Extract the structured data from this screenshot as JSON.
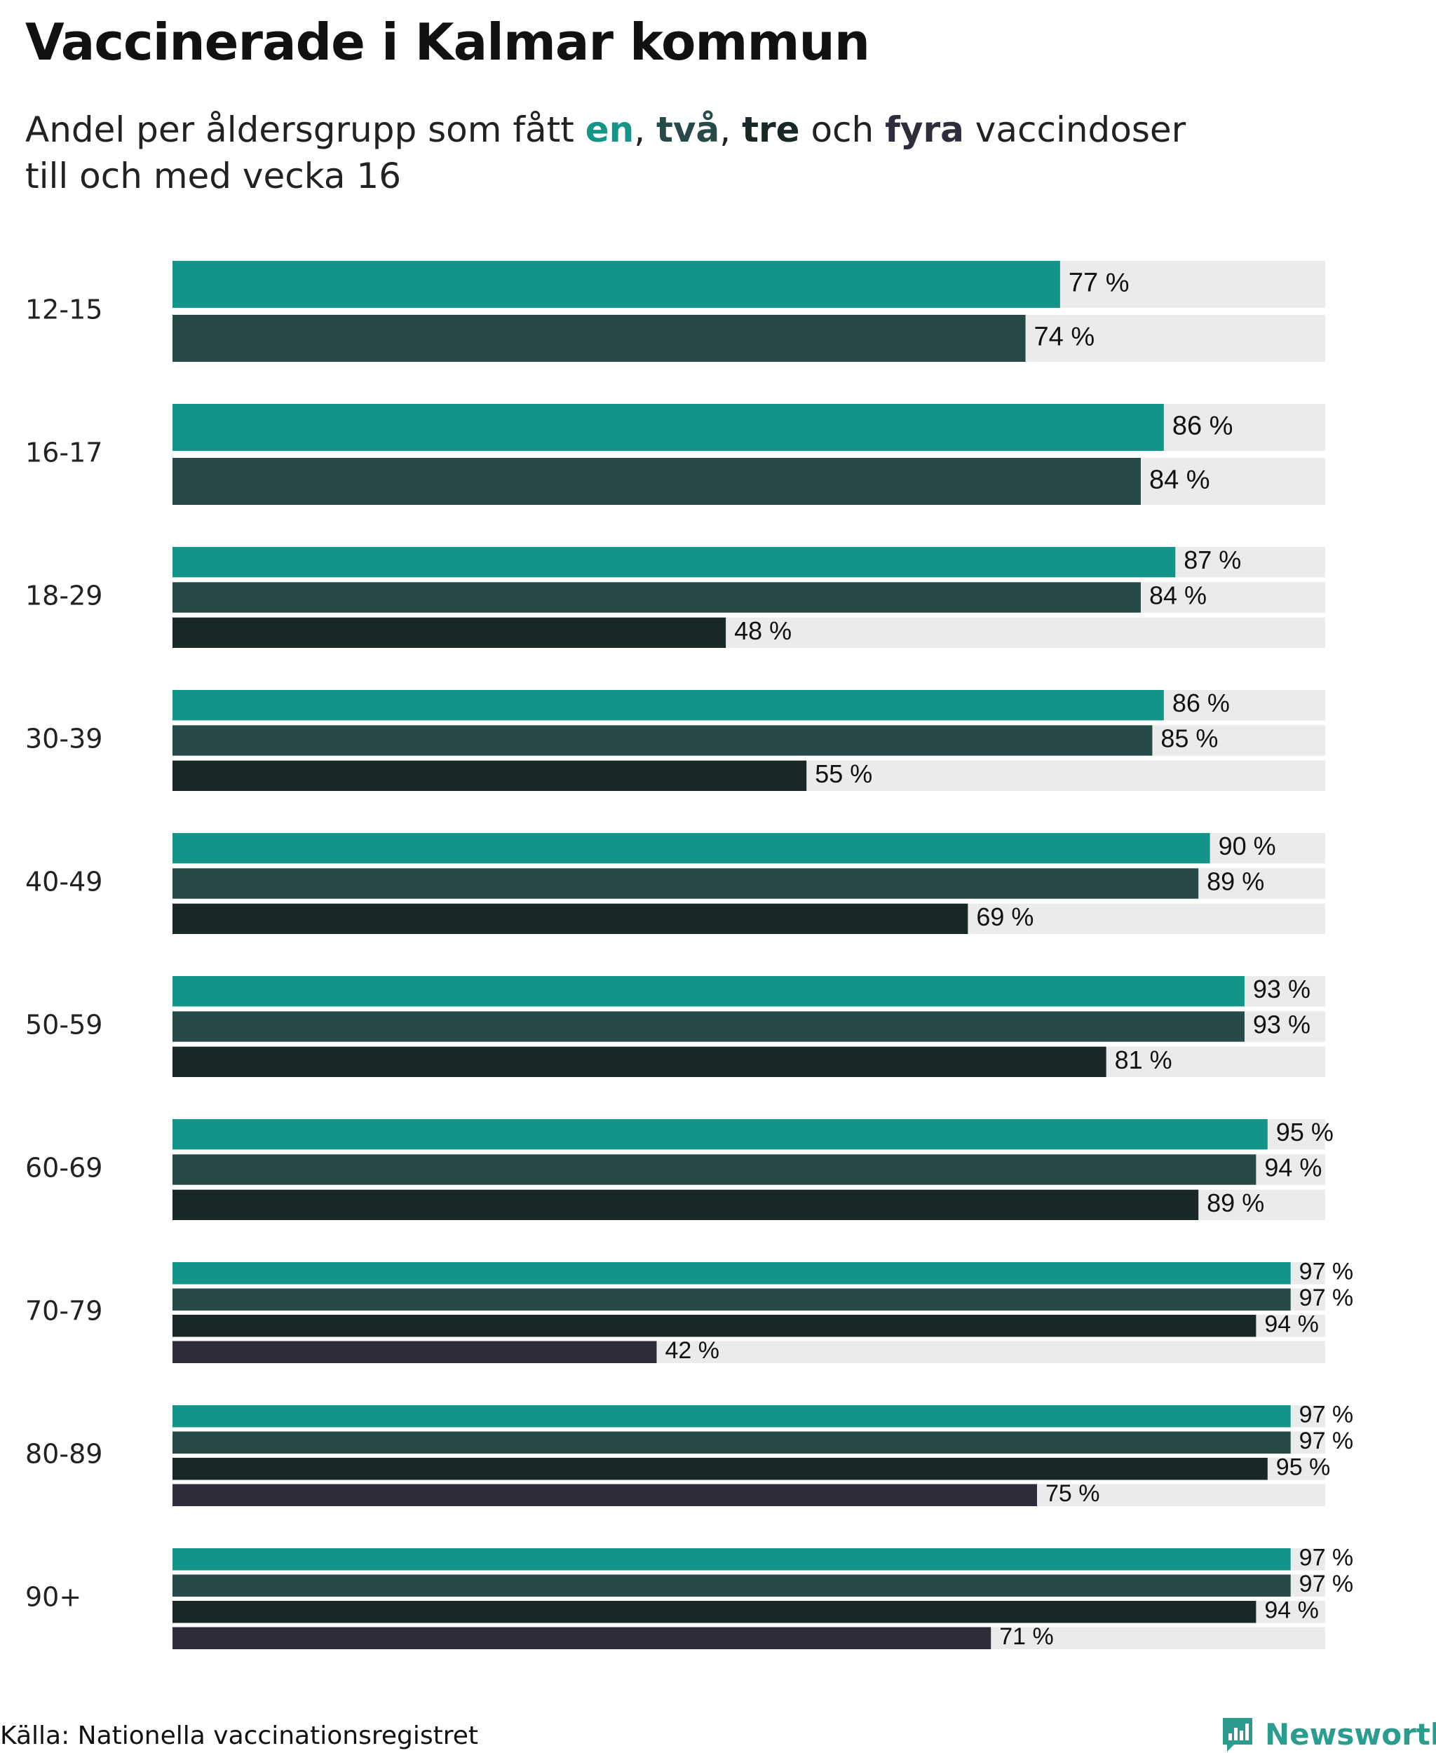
{
  "title": "Vaccinerade i Kalmar kommun",
  "subtitle": {
    "part1": "Andel per åldersgrupp som fått ",
    "w1": "en",
    "sep1": ", ",
    "w2": "två",
    "sep2": ", ",
    "w3": "tre",
    "part2": " och ",
    "w4": "fyra",
    "part3": " vaccindoser",
    "line2": "till och med vecka 16"
  },
  "colors": {
    "dose1": "#14958a",
    "dose2": "#264a48",
    "dose3": "#182826",
    "dose4": "#2e2d3c",
    "track": "#ebebeb"
  },
  "chart_data": {
    "type": "bar",
    "orientation": "horizontal",
    "title": "Vaccinerade i Kalmar kommun",
    "categories": [
      "12-15",
      "16-17",
      "18-29",
      "30-39",
      "40-49",
      "50-59",
      "60-69",
      "70-79",
      "80-89",
      "90+"
    ],
    "series": [
      {
        "name": "en",
        "values": [
          77,
          86,
          87,
          86,
          90,
          93,
          95,
          97,
          97,
          97
        ]
      },
      {
        "name": "två",
        "values": [
          74,
          84,
          84,
          85,
          89,
          93,
          94,
          97,
          97,
          97
        ]
      },
      {
        "name": "tre",
        "values": [
          null,
          null,
          48,
          55,
          69,
          81,
          89,
          94,
          95,
          94
        ]
      },
      {
        "name": "fyra",
        "values": [
          null,
          null,
          null,
          null,
          null,
          null,
          null,
          42,
          75,
          71
        ]
      }
    ],
    "value_suffix": " %",
    "xlim": [
      0,
      100
    ]
  },
  "footer": {
    "source": "Källa: Nationella vaccinationsregistret",
    "brand": "Newsworthy"
  }
}
